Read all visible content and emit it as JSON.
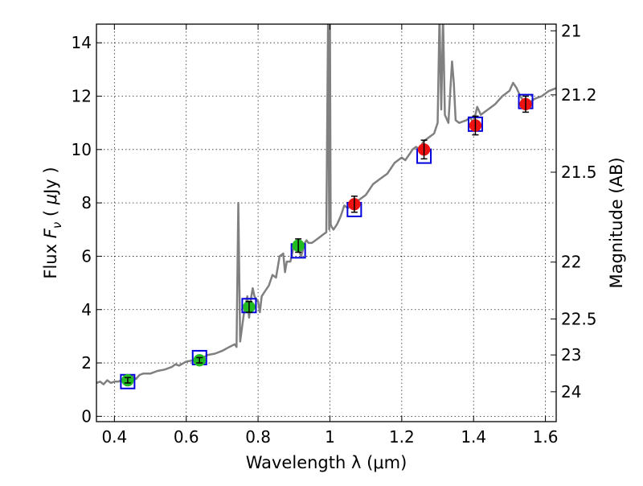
{
  "chart_data": {
    "type": "scatter",
    "xlabel": "Wavelength  λ (μm)",
    "ylabel_parts": [
      "Flux  ",
      "F",
      "ν",
      "  (  ",
      "μ",
      "Jy  )"
    ],
    "right_ylabel": "Magnitude (AB)",
    "xlim": [
      0.35,
      1.63
    ],
    "ylim": [
      -0.2,
      14.7
    ],
    "grid": true,
    "x_ticks": [
      0.4,
      0.6,
      0.8,
      1.0,
      1.2,
      1.4,
      1.6
    ],
    "x_tick_labels": [
      "0.4",
      "0.6",
      "0.8",
      "1",
      "1.2",
      "1.4",
      "1.6"
    ],
    "y_ticks": [
      0,
      2,
      4,
      6,
      8,
      10,
      12,
      14
    ],
    "y_tick_labels": [
      "0",
      "2",
      "4",
      "6",
      "8",
      "10",
      "12",
      "14"
    ],
    "right_ticks": [
      {
        "label": "21",
        "flux": 14.45
      },
      {
        "label": "21.2",
        "flux": 12.05
      },
      {
        "label": "21.5",
        "flux": 9.15
      },
      {
        "label": "22",
        "flux": 5.78
      },
      {
        "label": "22.5",
        "flux": 3.65
      },
      {
        "label": "23",
        "flux": 2.3
      },
      {
        "label": "24",
        "flux": 0.92
      }
    ],
    "series": [
      {
        "name": "model-spectrum",
        "kind": "line",
        "color": "#808080",
        "x": [
          0.35,
          0.36,
          0.37,
          0.38,
          0.39,
          0.4,
          0.41,
          0.42,
          0.43,
          0.44,
          0.45,
          0.46,
          0.47,
          0.48,
          0.5,
          0.52,
          0.54,
          0.56,
          0.57,
          0.58,
          0.6,
          0.62,
          0.64,
          0.66,
          0.68,
          0.7,
          0.72,
          0.735,
          0.74,
          0.745,
          0.75,
          0.755,
          0.76,
          0.77,
          0.775,
          0.78,
          0.785,
          0.79,
          0.8,
          0.805,
          0.81,
          0.82,
          0.83,
          0.84,
          0.85,
          0.86,
          0.87,
          0.875,
          0.88,
          0.89,
          0.9,
          0.91,
          0.92,
          0.93,
          0.935,
          0.94,
          0.95,
          0.96,
          0.97,
          0.98,
          0.99,
          0.995,
          0.998,
          1.0,
          1.002,
          1.005,
          1.01,
          1.02,
          1.03,
          1.04,
          1.05,
          1.06,
          1.07,
          1.08,
          1.1,
          1.12,
          1.14,
          1.16,
          1.18,
          1.2,
          1.21,
          1.22,
          1.23,
          1.24,
          1.25,
          1.26,
          1.27,
          1.28,
          1.29,
          1.3,
          1.305,
          1.31,
          1.315,
          1.32,
          1.33,
          1.34,
          1.345,
          1.35,
          1.36,
          1.38,
          1.39,
          1.4,
          1.41,
          1.42,
          1.43,
          1.44,
          1.46,
          1.48,
          1.5,
          1.51,
          1.52,
          1.53,
          1.54,
          1.55,
          1.57,
          1.59,
          1.61,
          1.63
        ],
        "y": [
          1.25,
          1.3,
          1.2,
          1.35,
          1.25,
          1.3,
          1.3,
          1.35,
          1.3,
          1.35,
          1.5,
          1.4,
          1.55,
          1.6,
          1.6,
          1.7,
          1.75,
          1.85,
          1.95,
          1.9,
          2.05,
          2.1,
          2.15,
          2.3,
          2.35,
          2.45,
          2.6,
          2.7,
          2.6,
          8.0,
          2.8,
          3.3,
          3.8,
          4.5,
          3.7,
          4.4,
          4.8,
          4.5,
          4.3,
          3.9,
          4.5,
          4.7,
          4.9,
          5.3,
          5.2,
          6.0,
          6.1,
          5.4,
          5.8,
          5.8,
          6.4,
          6.3,
          6.0,
          6.5,
          6.6,
          6.5,
          6.5,
          6.6,
          6.7,
          6.8,
          6.9,
          15.0,
          7.0,
          15.0,
          7.2,
          7.1,
          7.0,
          7.2,
          7.5,
          7.9,
          7.8,
          7.9,
          8.0,
          8.1,
          8.3,
          8.7,
          8.9,
          9.1,
          9.5,
          9.7,
          9.6,
          9.8,
          10.0,
          10.1,
          10.0,
          10.3,
          10.4,
          10.5,
          10.6,
          11.0,
          15.0,
          11.5,
          15.0,
          11.3,
          11.0,
          13.3,
          12.5,
          11.1,
          11.0,
          11.1,
          11.2,
          11.0,
          11.6,
          11.3,
          11.4,
          11.5,
          11.7,
          12.0,
          12.2,
          12.5,
          12.3,
          12.0,
          11.8,
          11.7,
          11.9,
          12.0,
          12.2,
          12.3
        ]
      },
      {
        "name": "model-bandpass",
        "kind": "square",
        "color": "#0000dd",
        "x": [
          0.437,
          0.637,
          0.775,
          0.912,
          1.068,
          1.262,
          1.405,
          1.545
        ],
        "y": [
          1.3,
          2.2,
          4.15,
          6.2,
          7.75,
          9.75,
          10.95,
          11.8
        ]
      },
      {
        "name": "observed-optical",
        "kind": "circle",
        "color": "#22bb22",
        "x": [
          0.437,
          0.637,
          0.775,
          0.912
        ],
        "y": [
          1.35,
          2.1,
          4.1,
          6.4
        ],
        "err": [
          0.1,
          0.1,
          0.2,
          0.25
        ]
      },
      {
        "name": "observed-infrared",
        "kind": "circle",
        "color": "#ee1111",
        "x": [
          1.068,
          1.262,
          1.405,
          1.545
        ],
        "y": [
          7.95,
          10.0,
          10.9,
          11.7
        ],
        "err": [
          0.3,
          0.35,
          0.35,
          0.3
        ]
      }
    ]
  }
}
